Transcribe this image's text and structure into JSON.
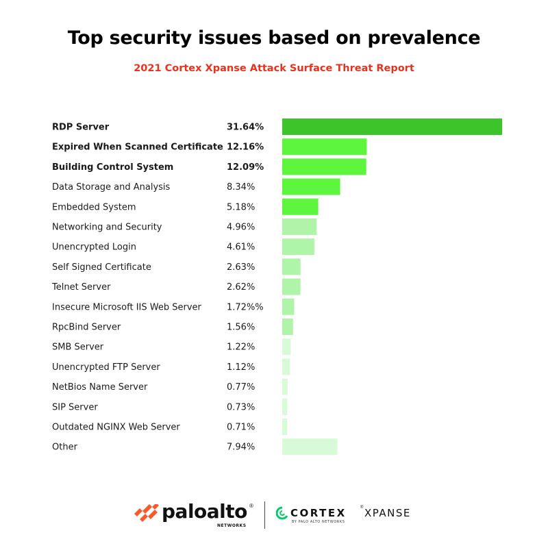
{
  "chart_data": {
    "type": "bar",
    "orientation": "horizontal",
    "title": "Top security issues based on prevalence",
    "subtitle": "2021 Cortex Xpanse Attack Surface Threat Report",
    "categories": [
      "RDP Server",
      "Expired When Scanned Certificate",
      "Building Control System",
      "Data Storage and Analysis",
      "Embedded System",
      "Networking and Security",
      "Unencrypted Login",
      "Self Signed Certificate",
      "Telnet Server",
      "Insecure Microsoft IIS Web Server",
      "RpcBind Server",
      "SMB Server",
      "Unencrypted FTP Server",
      "NetBios Name Server",
      "SIP Server",
      "Outdated NGINX Web Server",
      "Other"
    ],
    "values": [
      31.64,
      12.16,
      12.09,
      8.34,
      5.18,
      4.96,
      4.61,
      2.63,
      2.62,
      1.72,
      1.56,
      1.22,
      1.12,
      0.77,
      0.73,
      0.71,
      7.94
    ],
    "value_labels": [
      "31.64%",
      "12.16%",
      "12.09%",
      "8.34%",
      "5.18%",
      "4.96%",
      "4.61%",
      "2.63%",
      "2.62%",
      "1.72%%",
      "1.56%",
      "1.22%",
      "1.12%",
      "0.77%",
      "0.73%",
      "0.71%",
      "7.94%"
    ],
    "colors": [
      "#3cc42a",
      "#5ef53f",
      "#5ef53f",
      "#5ef53f",
      "#5ef53f",
      "#aff4a8",
      "#aff4a8",
      "#aff4a8",
      "#aff4a8",
      "#aff4a8",
      "#aff4a8",
      "#d9fad6",
      "#d9fad6",
      "#d9fad6",
      "#d9fad6",
      "#d9fad6",
      "#d9fad6"
    ],
    "xlim": [
      0,
      31.64
    ],
    "grid": false,
    "legend": "none"
  },
  "footer": {
    "paloalto_name": "paloalto",
    "paloalto_reg": "®",
    "paloalto_sub": "NETWORKS",
    "cortex_name": "CORTEX",
    "cortex_tm": "®",
    "cortex_product": "XPANSE",
    "cortex_sub": "BY PALO ALTO NETWORKS",
    "paloalto_logo_icon": "paloalto-chevrons-icon",
    "cortex_logo_icon": "cortex-ring-icon",
    "paloalto_logo_color": "#fa582d",
    "cortex_logo_color": "#00cc66"
  }
}
